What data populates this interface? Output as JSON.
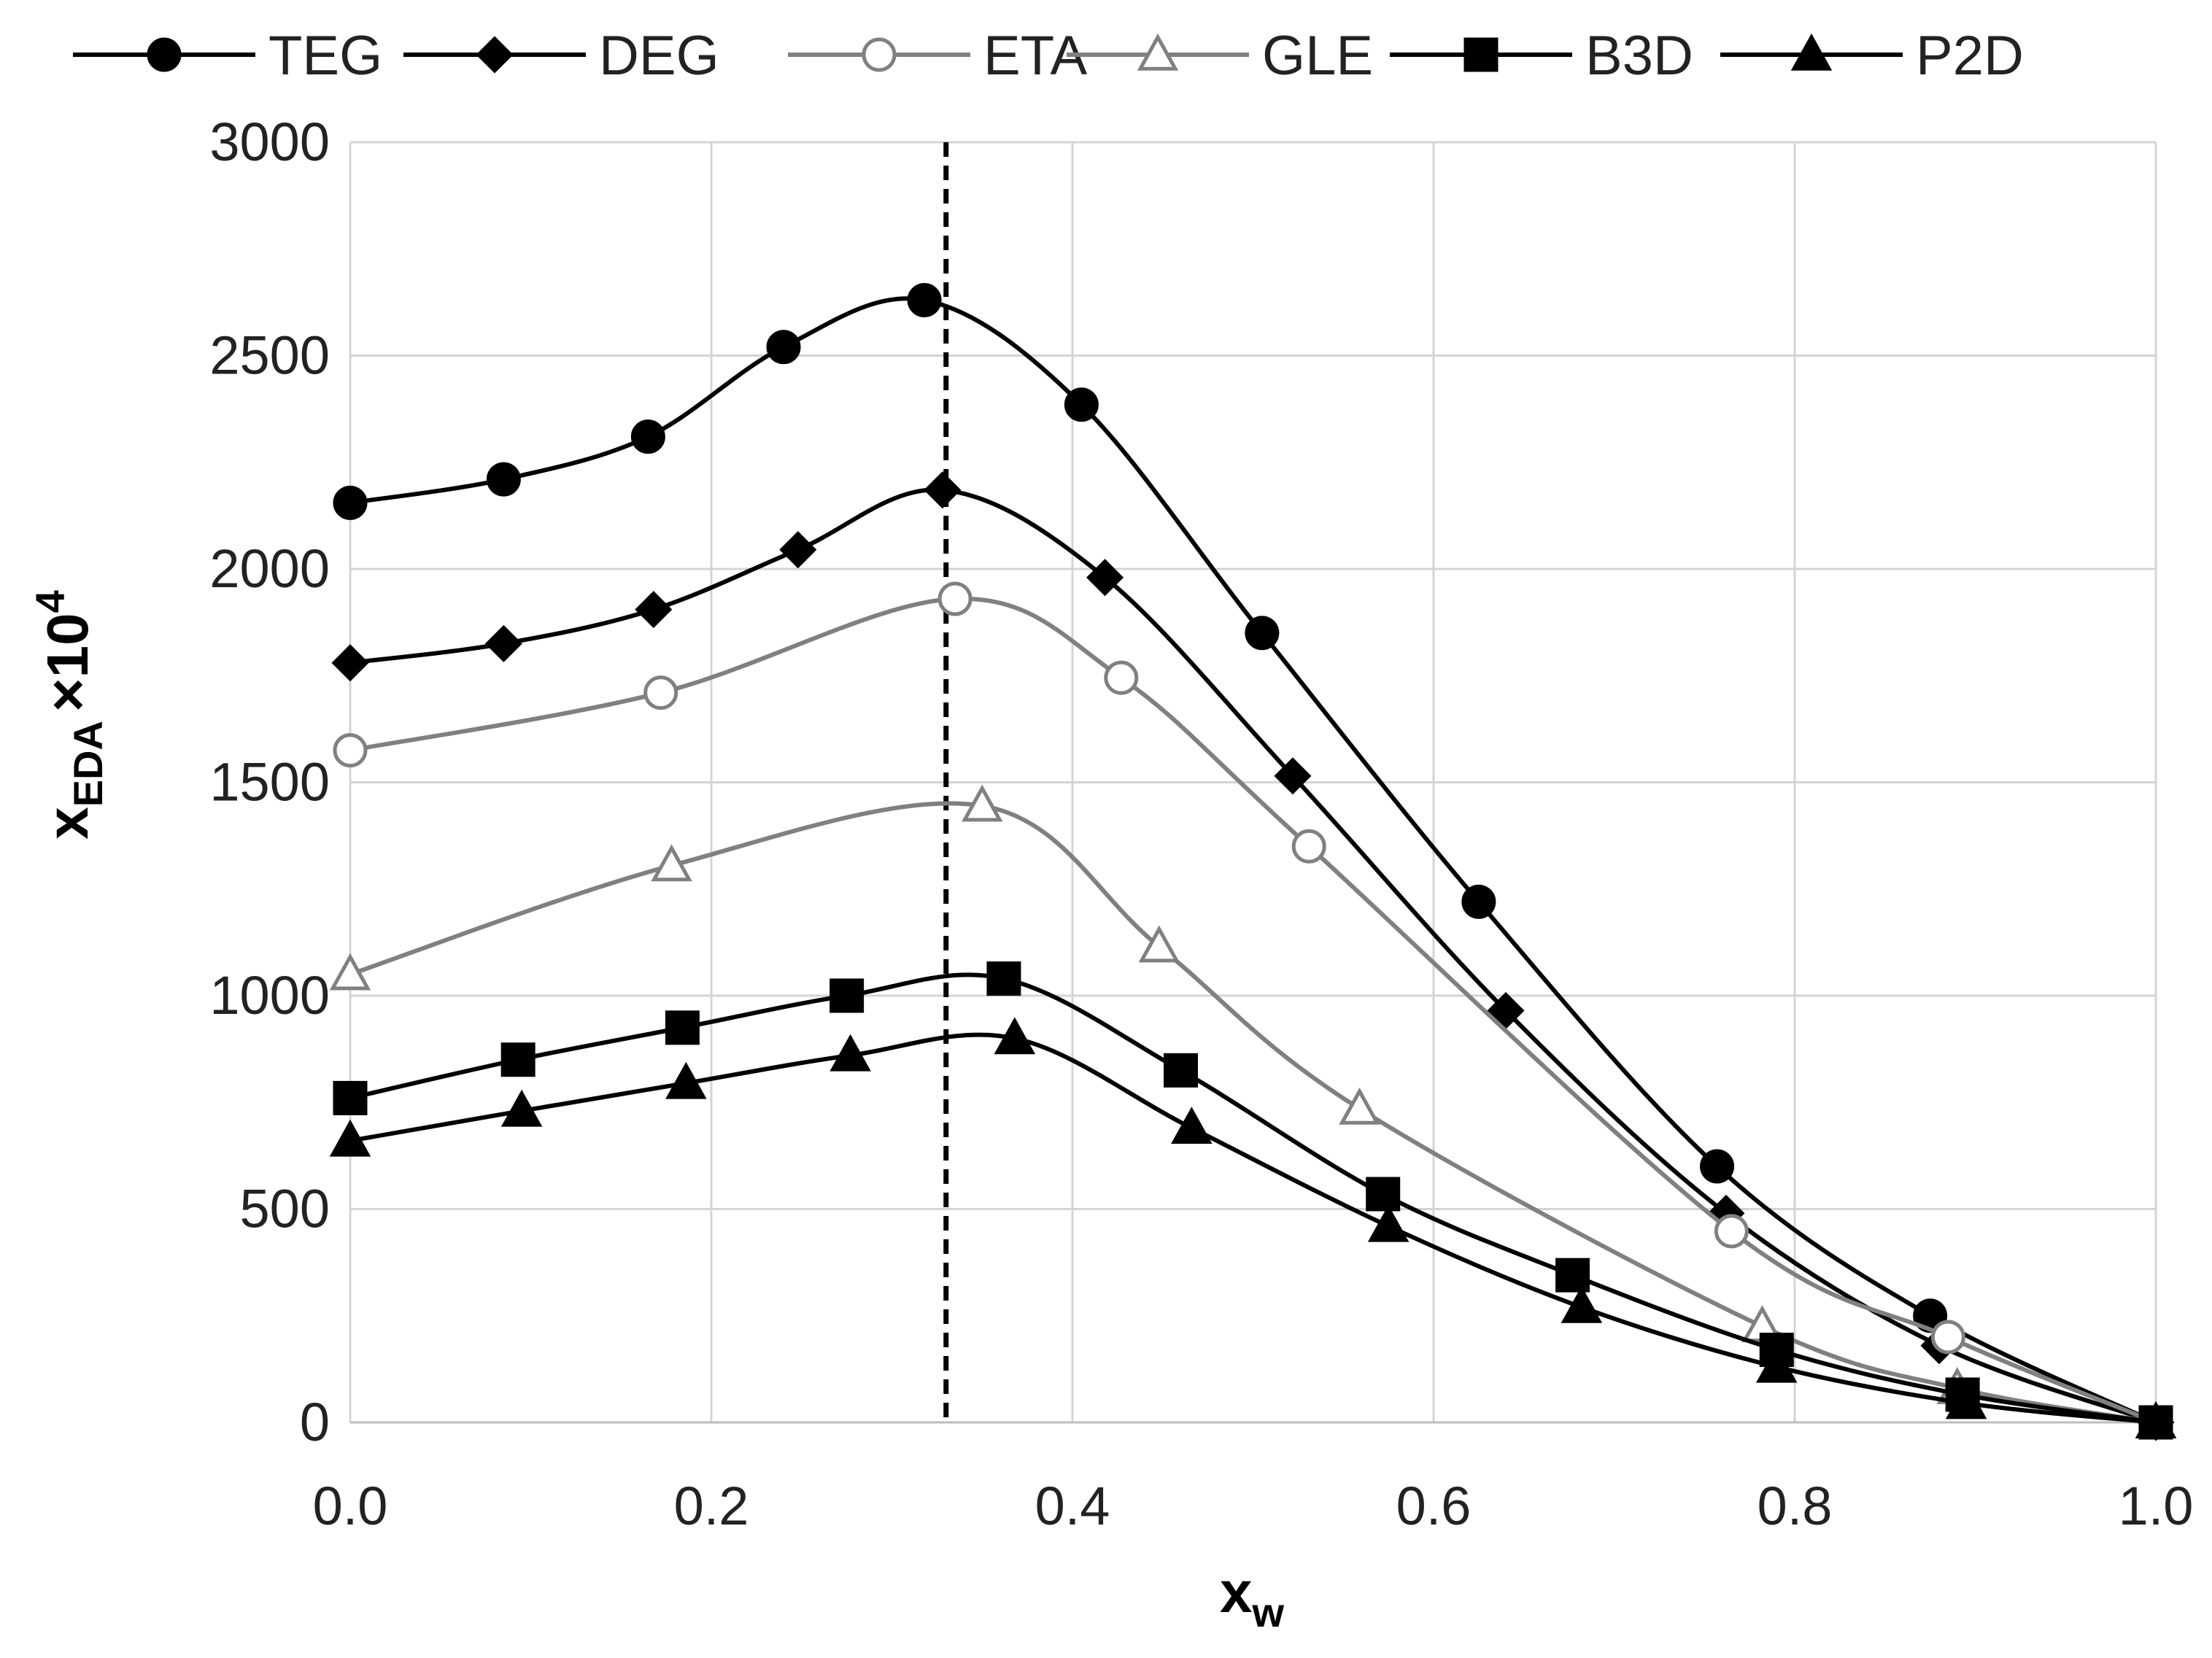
{
  "chart_data": {
    "type": "line",
    "title": "",
    "xlabel": "x_w",
    "ylabel": "x_EDA ×10^4",
    "xlabel_parts": {
      "main": "x",
      "sub": "w"
    },
    "ylabel_parts": {
      "main": "x",
      "sub": "EDA",
      "mult": "×10",
      "sup": "4"
    },
    "xlim": [
      0,
      1
    ],
    "ylim": [
      0,
      3000
    ],
    "xticks": [
      0,
      0.2,
      0.4,
      0.6,
      0.8,
      1.0
    ],
    "xtick_labels": [
      "0.0",
      "0.2",
      "0.4",
      "0.6",
      "0.8",
      "1.0"
    ],
    "yticks": [
      0,
      500,
      1000,
      1500,
      2000,
      2500,
      3000
    ],
    "ytick_labels": [
      "0",
      "500",
      "1000",
      "1500",
      "2000",
      "2500",
      "3000"
    ],
    "grid": true,
    "legend_position": "top",
    "reference_line": {
      "x": 0.33,
      "style": "dashed"
    },
    "series": [
      {
        "name": "TEG",
        "marker": "circle",
        "filled": true,
        "color": "#000000",
        "x": [
          0.0,
          0.085,
          0.165,
          0.24,
          0.318,
          0.405,
          0.505,
          0.625,
          0.757,
          0.875,
          1.0
        ],
        "y": [
          2155,
          2210,
          2310,
          2520,
          2630,
          2385,
          1850,
          1220,
          600,
          250,
          0
        ]
      },
      {
        "name": "DEG",
        "marker": "diamond",
        "filled": true,
        "color": "#000000",
        "x": [
          0.0,
          0.085,
          0.168,
          0.248,
          0.328,
          0.418,
          0.522,
          0.64,
          0.762,
          0.88,
          1.0
        ],
        "y": [
          1780,
          1825,
          1905,
          2045,
          2185,
          1980,
          1515,
          965,
          490,
          180,
          0
        ]
      },
      {
        "name": "ETA",
        "marker": "circle",
        "filled": false,
        "color": "#808080",
        "x": [
          0.0,
          0.172,
          0.335,
          0.427,
          0.531,
          0.765,
          0.885,
          1.0
        ],
        "y": [
          1575,
          1710,
          1930,
          1745,
          1350,
          448,
          200,
          0
        ]
      },
      {
        "name": "GLE",
        "marker": "triangle",
        "filled": false,
        "color": "#808080",
        "x": [
          0.0,
          0.178,
          0.35,
          0.448,
          0.559,
          0.782,
          0.89,
          1.0
        ],
        "y": [
          1050,
          1305,
          1445,
          1115,
          735,
          225,
          80,
          0
        ]
      },
      {
        "name": "B3D",
        "marker": "square",
        "filled": true,
        "color": "#000000",
        "x": [
          0.0,
          0.093,
          0.184,
          0.275,
          0.362,
          0.46,
          0.572,
          0.677,
          0.79,
          0.893,
          1.0
        ],
        "y": [
          760,
          850,
          925,
          1000,
          1040,
          825,
          535,
          345,
          170,
          65,
          0
        ]
      },
      {
        "name": "P2D",
        "marker": "triangle",
        "filled": true,
        "color": "#000000",
        "x": [
          0.0,
          0.095,
          0.186,
          0.277,
          0.368,
          0.466,
          0.575,
          0.682,
          0.79,
          0.895,
          1.0
        ],
        "y": [
          660,
          730,
          795,
          860,
          900,
          690,
          460,
          270,
          130,
          45,
          0
        ]
      }
    ]
  }
}
